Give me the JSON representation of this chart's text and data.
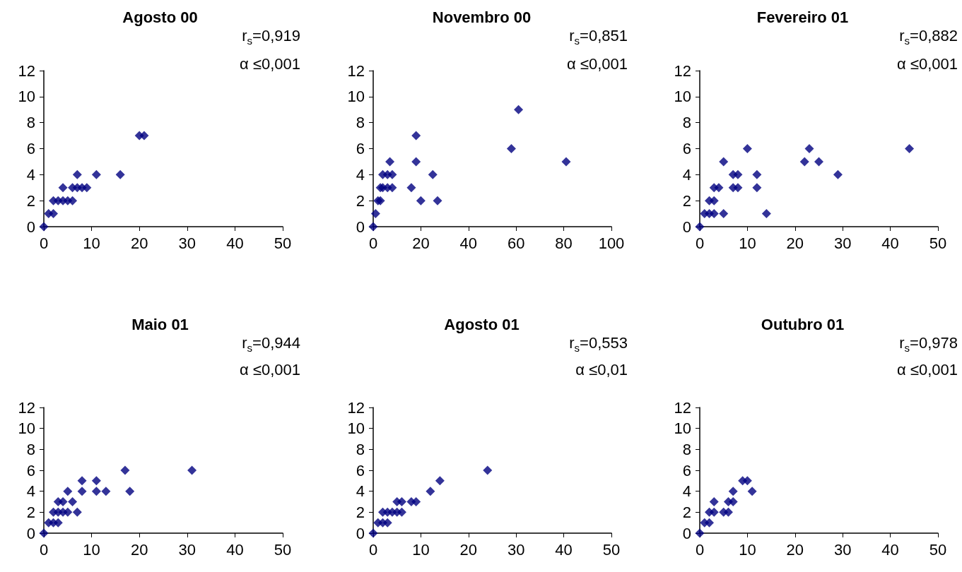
{
  "chart_data": [
    {
      "type": "scatter",
      "title": "Agosto 00",
      "annotations": [
        "r$_{s}$=0,919",
        "α ≤0,001"
      ],
      "marker": "diamond",
      "color": "#000080",
      "xlim": [
        0,
        50
      ],
      "xticks": [
        0,
        10,
        20,
        30,
        40,
        50
      ],
      "ylim": [
        0,
        12
      ],
      "yticks": [
        0,
        2,
        4,
        6,
        8,
        10,
        12
      ],
      "x": [
        0,
        1,
        2,
        2,
        3,
        4,
        5,
        6,
        4,
        6,
        7,
        8,
        9,
        7,
        11,
        16,
        20,
        21
      ],
      "values": [
        0,
        1,
        1,
        2,
        2,
        2,
        2,
        2,
        3,
        3,
        3,
        3,
        3,
        4,
        4,
        4,
        7,
        7
      ]
    },
    {
      "type": "scatter",
      "title": "Novembro 00",
      "annotations": [
        "r$_{s}$=0,851",
        "α ≤0,001"
      ],
      "marker": "diamond",
      "color": "#000080",
      "xlim": [
        0,
        100
      ],
      "xticks": [
        0,
        20,
        40,
        60,
        80,
        100
      ],
      "ylim": [
        0,
        12
      ],
      "yticks": [
        0,
        2,
        4,
        6,
        8,
        10,
        12
      ],
      "x": [
        0,
        1,
        2,
        3,
        3,
        4,
        6,
        8,
        16,
        4,
        6,
        8,
        25,
        7,
        18,
        18,
        20,
        27,
        58,
        61,
        81
      ],
      "values": [
        0,
        1,
        2,
        2,
        3,
        3,
        3,
        3,
        3,
        4,
        4,
        4,
        4,
        5,
        5,
        7,
        2,
        2,
        6,
        9,
        5
      ]
    },
    {
      "type": "scatter",
      "title": "Fevereiro 01",
      "annotations": [
        "r$_{s}$=0,882",
        "α ≤0,001"
      ],
      "marker": "diamond",
      "color": "#000080",
      "xlim": [
        0,
        50
      ],
      "xticks": [
        0,
        10,
        20,
        30,
        40,
        50
      ],
      "ylim": [
        0,
        12
      ],
      "yticks": [
        0,
        2,
        4,
        6,
        8,
        10,
        12
      ],
      "x": [
        0,
        1,
        2,
        3,
        5,
        14,
        2,
        3,
        3,
        4,
        7,
        8,
        12,
        7,
        8,
        12,
        29,
        5,
        22,
        25,
        10,
        23,
        44
      ],
      "values": [
        0,
        1,
        1,
        1,
        1,
        1,
        2,
        2,
        3,
        3,
        3,
        3,
        3,
        4,
        4,
        4,
        4,
        5,
        5,
        5,
        6,
        6,
        6
      ]
    },
    {
      "type": "scatter",
      "title": "Maio 01",
      "annotations": [
        "r$_{s}$=0,944",
        "α ≤0,001"
      ],
      "marker": "diamond",
      "color": "#000080",
      "xlim": [
        0,
        50
      ],
      "xticks": [
        0,
        10,
        20,
        30,
        40,
        50
      ],
      "ylim": [
        0,
        12
      ],
      "yticks": [
        0,
        2,
        4,
        6,
        8,
        10,
        12
      ],
      "x": [
        0,
        1,
        2,
        3,
        2,
        3,
        4,
        5,
        7,
        3,
        4,
        6,
        5,
        8,
        11,
        13,
        18,
        8,
        11,
        17,
        31
      ],
      "values": [
        0,
        1,
        1,
        1,
        2,
        2,
        2,
        2,
        2,
        3,
        3,
        3,
        4,
        4,
        4,
        4,
        4,
        5,
        5,
        6,
        6
      ]
    },
    {
      "type": "scatter",
      "title": "Agosto 01",
      "annotations": [
        "r$_{s}$=0,553",
        "α ≤0,01"
      ],
      "marker": "diamond",
      "color": "#000080",
      "xlim": [
        0,
        50
      ],
      "xticks": [
        0,
        10,
        20,
        30,
        40,
        50
      ],
      "ylim": [
        0,
        12
      ],
      "yticks": [
        0,
        2,
        4,
        6,
        8,
        10,
        12
      ],
      "x": [
        0,
        1,
        2,
        3,
        2,
        3,
        4,
        5,
        6,
        5,
        6,
        8,
        9,
        12,
        14,
        24
      ],
      "values": [
        0,
        1,
        1,
        1,
        2,
        2,
        2,
        2,
        2,
        3,
        3,
        3,
        3,
        4,
        5,
        6
      ]
    },
    {
      "type": "scatter",
      "title": "Outubro 01",
      "annotations": [
        "r$_{s}$=0,978",
        "α ≤0,001"
      ],
      "marker": "diamond",
      "color": "#000080",
      "xlim": [
        0,
        50
      ],
      "xticks": [
        0,
        10,
        20,
        30,
        40,
        50
      ],
      "ylim": [
        0,
        12
      ],
      "yticks": [
        0,
        2,
        4,
        6,
        8,
        10,
        12
      ],
      "x": [
        0,
        1,
        2,
        2,
        3,
        5,
        6,
        3,
        6,
        7,
        7,
        11,
        9,
        10
      ],
      "values": [
        0,
        1,
        1,
        2,
        2,
        2,
        2,
        3,
        3,
        3,
        4,
        4,
        5,
        5
      ]
    }
  ]
}
